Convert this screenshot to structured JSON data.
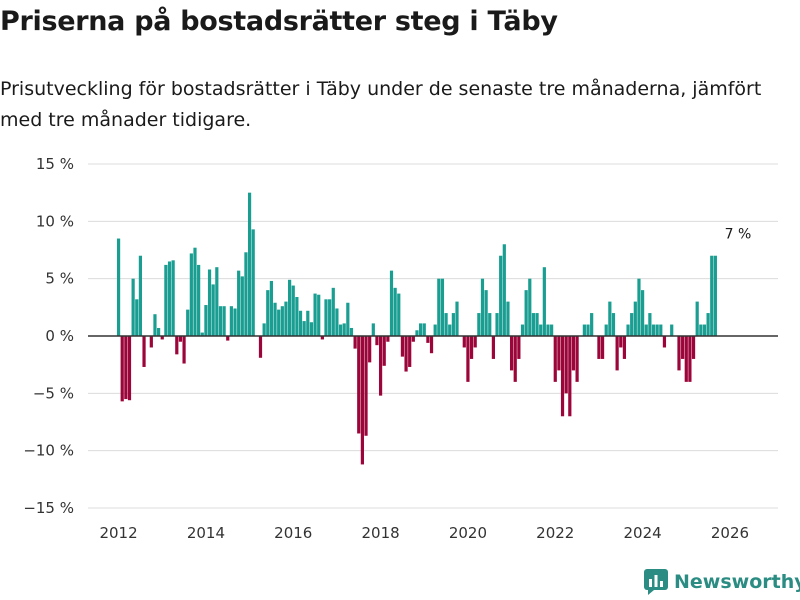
{
  "title": "Priserna på bostadsrätter steg i Täby",
  "subtitle": "Prisutveckling för bostadsrätter i Täby under de senaste tre månaderna, jämfört med tre månader tidigare.",
  "brand": {
    "name": "Newsworthy",
    "icon": "newsworthy-logo-icon"
  },
  "colors": {
    "positive": "#1a9e92",
    "negative": "#9b0539",
    "grid": "#dcdcdc",
    "zero_line": "#333333",
    "brand": "#2a8c82"
  },
  "chart_data": {
    "type": "bar",
    "title": "Priserna på bostadsrätter steg i Täby",
    "xlabel": "",
    "ylabel": "",
    "ylim": [
      -15,
      15
    ],
    "xlim": [
      2011.3,
      2027.1
    ],
    "y_ticks": [
      {
        "value": 15,
        "label": "15 %"
      },
      {
        "value": 10,
        "label": "10 %"
      },
      {
        "value": 5,
        "label": "5 %"
      },
      {
        "value": 0,
        "label": "0 %"
      },
      {
        "value": -5,
        "label": "−5 %"
      },
      {
        "value": -10,
        "label": "−10 %"
      },
      {
        "value": -15,
        "label": "−15 %"
      }
    ],
    "x_ticks": [
      {
        "value": 2012,
        "label": "2012"
      },
      {
        "value": 2014,
        "label": "2014"
      },
      {
        "value": 2016,
        "label": "2016"
      },
      {
        "value": 2018,
        "label": "2018"
      },
      {
        "value": 2020,
        "label": "2020"
      },
      {
        "value": 2022,
        "label": "2022"
      },
      {
        "value": 2024,
        "label": "2024"
      },
      {
        "value": 2026,
        "label": "2026"
      }
    ],
    "grid": true,
    "start": 2012.0,
    "step": 0.08333,
    "unit": "%",
    "values": [
      8.5,
      -5.7,
      -5.5,
      -5.6,
      5.0,
      3.2,
      7.0,
      -2.7,
      0.0,
      -1.0,
      1.9,
      0.7,
      -0.3,
      6.2,
      6.5,
      6.6,
      -1.6,
      -0.5,
      -2.4,
      2.3,
      7.2,
      7.7,
      6.2,
      0.3,
      2.7,
      5.8,
      4.5,
      6.0,
      2.6,
      2.6,
      -0.4,
      2.6,
      2.4,
      5.7,
      5.2,
      7.3,
      12.5,
      9.3,
      0.0,
      -1.9,
      1.1,
      4.0,
      4.8,
      2.9,
      2.3,
      2.6,
      3.0,
      4.9,
      4.4,
      3.4,
      2.2,
      1.3,
      2.2,
      1.2,
      3.7,
      3.6,
      -0.3,
      3.2,
      3.2,
      4.2,
      2.4,
      1.0,
      1.1,
      2.9,
      0.7,
      -1.1,
      -8.5,
      -11.2,
      -8.7,
      -2.3,
      1.1,
      -0.8,
      -5.2,
      -2.6,
      -0.5,
      5.7,
      4.2,
      3.7,
      -1.8,
      -3.1,
      -2.7,
      -0.5,
      0.5,
      1.1,
      1.1,
      -0.6,
      -1.5,
      1.0,
      5.0,
      5.0,
      2.0,
      1.0,
      2.0,
      3.0,
      0.0,
      -1.0,
      -4.0,
      -2.0,
      -1.0,
      2.0,
      5.0,
      4.0,
      2.0,
      -2.0,
      2.0,
      7.0,
      8.0,
      3.0,
      -3.0,
      -4.0,
      -2.0,
      1.0,
      4.0,
      5.0,
      2.0,
      2.0,
      1.0,
      6.0,
      1.0,
      1.0,
      -4.0,
      -3.0,
      -7.0,
      -5.0,
      -7.0,
      -3.0,
      -4.0,
      0.0,
      1.0,
      1.0,
      2.0,
      0.0,
      -2.0,
      -2.0,
      1.0,
      3.0,
      2.0,
      -3.0,
      -1.0,
      -2.0,
      1.0,
      2.0,
      3.0,
      5.0,
      4.0,
      1.0,
      2.0,
      1.0,
      1.0,
      1.0,
      -1.0,
      0.0,
      1.0,
      0.0,
      -3.0,
      -2.0,
      -4.0,
      -4.0,
      -2.0,
      3.0,
      1.0,
      1.0,
      2.0,
      7.0,
      7.0
    ],
    "annotations": [
      {
        "text": "7 %",
        "x": 2026.0,
        "y": 7.0
      }
    ]
  }
}
